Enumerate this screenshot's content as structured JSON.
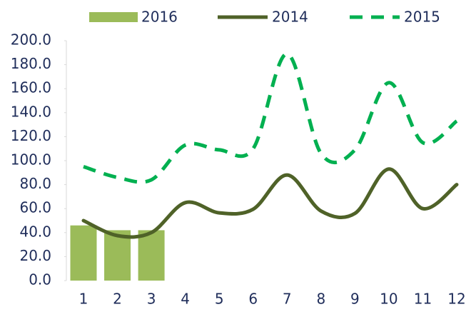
{
  "chart_data": {
    "type": "bar_line",
    "categories": [
      "1",
      "2",
      "3",
      "4",
      "5",
      "6",
      "7",
      "8",
      "9",
      "10",
      "11",
      "12"
    ],
    "series": [
      {
        "name": "2016",
        "type": "bar",
        "color": "#9bbb59",
        "values": [
          46,
          42,
          42,
          null,
          null,
          null,
          null,
          null,
          null,
          null,
          null,
          null
        ]
      },
      {
        "name": "2014",
        "type": "line",
        "dash": false,
        "color": "#4f6228",
        "values": [
          50,
          37.5,
          40,
          65,
          56.5,
          59.5,
          88,
          58,
          56,
          93,
          60,
          80
        ]
      },
      {
        "name": "2015",
        "type": "line",
        "dash": true,
        "color": "#00b050",
        "values": [
          95,
          86,
          84,
          113,
          109,
          110,
          189,
          106,
          109,
          165,
          115,
          133
        ]
      }
    ],
    "ylim": [
      0,
      200
    ],
    "yticks": [
      {
        "value": 0,
        "label": "0.0"
      },
      {
        "value": 20,
        "label": "20.0"
      },
      {
        "value": 40,
        "label": "40.0"
      },
      {
        "value": 60,
        "label": "60.0"
      },
      {
        "value": 80,
        "label": "80.0"
      },
      {
        "value": 100,
        "label": "100.0"
      },
      {
        "value": 120,
        "label": "120.0"
      },
      {
        "value": 140,
        "label": "140.0"
      },
      {
        "value": 160,
        "label": "160.0"
      },
      {
        "value": 180,
        "label": "180.0"
      },
      {
        "value": 200,
        "label": "200.0"
      }
    ],
    "grid": false,
    "legend": "top"
  }
}
